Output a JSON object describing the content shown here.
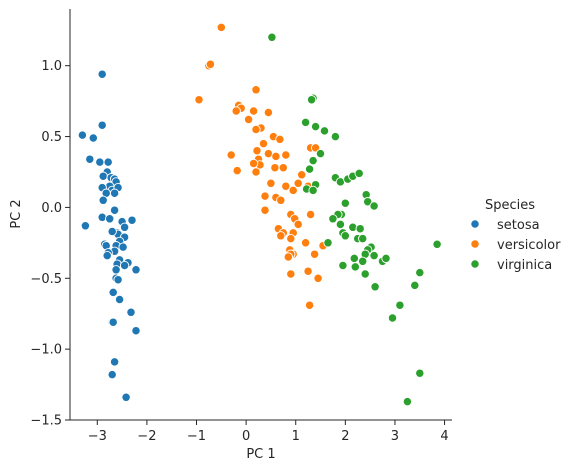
{
  "chart_data": {
    "type": "scatter",
    "title": "",
    "xlabel": "PC 1",
    "ylabel": "PC 2",
    "xlim": [
      -3.55,
      4.15
    ],
    "ylim": [
      -1.5,
      1.4
    ],
    "xticks": [
      -3,
      -2,
      -1,
      0,
      1,
      2,
      3,
      4
    ],
    "yticks": [
      -1.5,
      -1.0,
      -0.5,
      0.0,
      0.5,
      1.0
    ],
    "xtick_labels": [
      "−3",
      "−2",
      "−1",
      "0",
      "1",
      "2",
      "3",
      "4"
    ],
    "ytick_labels": [
      "−1.5",
      "−1.0",
      "−0.5",
      "0.0",
      "0.5",
      "1.0"
    ],
    "grid": false,
    "legend": {
      "title": "Species",
      "placement": "right"
    },
    "series": [
      {
        "name": "setosa",
        "color": "#1f77b4",
        "points": [
          [
            -2.9,
            0.94
          ],
          [
            -3.3,
            0.51
          ],
          [
            -3.08,
            0.49
          ],
          [
            -2.9,
            0.58
          ],
          [
            -3.15,
            0.34
          ],
          [
            -2.95,
            0.32
          ],
          [
            -2.78,
            0.32
          ],
          [
            -2.8,
            0.25
          ],
          [
            -2.88,
            0.22
          ],
          [
            -2.72,
            0.21
          ],
          [
            -2.65,
            0.2
          ],
          [
            -2.62,
            0.18
          ],
          [
            -2.75,
            0.15
          ],
          [
            -2.9,
            0.14
          ],
          [
            -2.7,
            0.12
          ],
          [
            -2.58,
            0.14
          ],
          [
            -2.65,
            0.1
          ],
          [
            -2.82,
            0.1
          ],
          [
            -2.88,
            0.05
          ],
          [
            -2.65,
            -0.02
          ],
          [
            -2.9,
            -0.07
          ],
          [
            -2.75,
            -0.08
          ],
          [
            -2.3,
            -0.09
          ],
          [
            -2.5,
            -0.1
          ],
          [
            -3.24,
            -0.13
          ],
          [
            -2.45,
            -0.14
          ],
          [
            -2.6,
            -0.18
          ],
          [
            -2.58,
            -0.19
          ],
          [
            -2.7,
            -0.17
          ],
          [
            -2.45,
            -0.21
          ],
          [
            -2.55,
            -0.24
          ],
          [
            -2.62,
            -0.27
          ],
          [
            -2.85,
            -0.26
          ],
          [
            -2.82,
            -0.27
          ],
          [
            -2.48,
            -0.28
          ],
          [
            -2.65,
            -0.31
          ],
          [
            -2.78,
            -0.32
          ],
          [
            -2.8,
            -0.34
          ],
          [
            -2.55,
            -0.37
          ],
          [
            -2.6,
            -0.4
          ],
          [
            -2.38,
            -0.39
          ],
          [
            -2.45,
            -0.41
          ],
          [
            -2.22,
            -0.44
          ],
          [
            -2.62,
            -0.44
          ],
          [
            -2.62,
            -0.5
          ],
          [
            -2.58,
            -0.51
          ],
          [
            -2.68,
            -0.6
          ],
          [
            -2.55,
            -0.65
          ],
          [
            -2.32,
            -0.74
          ],
          [
            -2.7,
            -0.81
          ],
          [
            -2.68,
            -0.81
          ],
          [
            -2.22,
            -0.87
          ],
          [
            -2.65,
            -1.09
          ],
          [
            -2.7,
            -1.18
          ],
          [
            -2.42,
            -1.34
          ]
        ]
      },
      {
        "name": "versicolor",
        "color": "#ff7f0e",
        "points": [
          [
            -0.5,
            1.27
          ],
          [
            -0.75,
            1.0
          ],
          [
            -0.72,
            1.01
          ],
          [
            -0.95,
            0.76
          ],
          [
            0.2,
            0.83
          ],
          [
            -0.15,
            0.72
          ],
          [
            -0.1,
            0.7
          ],
          [
            -0.2,
            0.68
          ],
          [
            0.15,
            0.68
          ],
          [
            0.45,
            0.67
          ],
          [
            0.05,
            0.62
          ],
          [
            0.3,
            0.56
          ],
          [
            0.2,
            0.55
          ],
          [
            0.55,
            0.5
          ],
          [
            0.68,
            0.48
          ],
          [
            0.35,
            0.45
          ],
          [
            1.3,
            0.42
          ],
          [
            0.22,
            0.4
          ],
          [
            0.45,
            0.38
          ],
          [
            1.4,
            0.42
          ],
          [
            -0.3,
            0.37
          ],
          [
            0.6,
            0.36
          ],
          [
            0.25,
            0.34
          ],
          [
            0.8,
            0.37
          ],
          [
            0.28,
            0.3
          ],
          [
            0.15,
            0.31
          ],
          [
            0.58,
            0.28
          ],
          [
            0.75,
            0.28
          ],
          [
            -0.18,
            0.26
          ],
          [
            0.2,
            0.25
          ],
          [
            1.12,
            0.23
          ],
          [
            1.25,
            0.15
          ],
          [
            0.5,
            0.17
          ],
          [
            0.8,
            0.15
          ],
          [
            1.05,
            0.17
          ],
          [
            0.95,
            0.12
          ],
          [
            0.38,
            0.08
          ],
          [
            0.6,
            0.07
          ],
          [
            0.7,
            0.05
          ],
          [
            0.38,
            -0.02
          ],
          [
            0.9,
            -0.05
          ],
          [
            1.3,
            -0.05
          ],
          [
            0.98,
            -0.08
          ],
          [
            1.05,
            -0.12
          ],
          [
            0.65,
            -0.15
          ],
          [
            0.75,
            -0.18
          ],
          [
            0.95,
            -0.18
          ],
          [
            0.7,
            -0.2
          ],
          [
            0.9,
            -0.22
          ],
          [
            1.2,
            -0.25
          ],
          [
            1.55,
            -0.27
          ],
          [
            0.88,
            -0.3
          ],
          [
            0.95,
            -0.33
          ],
          [
            0.9,
            -0.33
          ],
          [
            1.38,
            -0.33
          ],
          [
            0.85,
            -0.35
          ],
          [
            1.25,
            -0.45
          ],
          [
            0.9,
            -0.47
          ],
          [
            1.45,
            -0.5
          ],
          [
            1.28,
            -0.69
          ]
        ]
      },
      {
        "name": "virginica",
        "color": "#2ca02c",
        "points": [
          [
            0.52,
            1.2
          ],
          [
            1.35,
            0.77
          ],
          [
            1.32,
            0.76
          ],
          [
            1.2,
            0.6
          ],
          [
            1.4,
            0.57
          ],
          [
            1.58,
            0.54
          ],
          [
            1.8,
            0.5
          ],
          [
            1.5,
            0.38
          ],
          [
            1.35,
            0.33
          ],
          [
            1.28,
            0.27
          ],
          [
            1.8,
            0.21
          ],
          [
            1.9,
            0.18
          ],
          [
            2.05,
            0.2
          ],
          [
            2.15,
            0.22
          ],
          [
            2.28,
            0.24
          ],
          [
            1.4,
            0.16
          ],
          [
            1.22,
            0.13
          ],
          [
            1.35,
            0.12
          ],
          [
            2.42,
            0.09
          ],
          [
            2.0,
            0.03
          ],
          [
            2.45,
            0.04
          ],
          [
            2.58,
            0.01
          ],
          [
            1.92,
            -0.05
          ],
          [
            1.85,
            -0.05
          ],
          [
            1.75,
            -0.08
          ],
          [
            1.9,
            -0.12
          ],
          [
            2.15,
            -0.14
          ],
          [
            2.3,
            -0.15
          ],
          [
            1.95,
            -0.18
          ],
          [
            2.0,
            -0.2
          ],
          [
            2.25,
            -0.22
          ],
          [
            2.35,
            -0.22
          ],
          [
            1.65,
            -0.25
          ],
          [
            2.52,
            -0.28
          ],
          [
            2.45,
            -0.3
          ],
          [
            2.4,
            -0.33
          ],
          [
            2.58,
            -0.34
          ],
          [
            2.18,
            -0.36
          ],
          [
            2.35,
            -0.38
          ],
          [
            2.75,
            -0.38
          ],
          [
            2.82,
            -0.36
          ],
          [
            1.95,
            -0.41
          ],
          [
            2.2,
            -0.42
          ],
          [
            3.85,
            -0.26
          ],
          [
            3.5,
            -0.46
          ],
          [
            2.4,
            -0.47
          ],
          [
            3.4,
            -0.55
          ],
          [
            2.6,
            -0.56
          ],
          [
            3.1,
            -0.69
          ],
          [
            2.95,
            -0.78
          ],
          [
            3.5,
            -1.17
          ],
          [
            3.25,
            -1.37
          ]
        ]
      }
    ]
  }
}
